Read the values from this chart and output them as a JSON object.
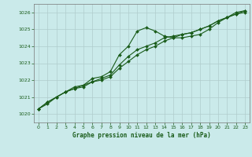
{
  "title": "Graphe pression niveau de la mer (hPa)",
  "bg_color": "#caeaea",
  "grid_color": "#b0cccc",
  "line_color": "#1a5c1a",
  "marker_color": "#1a5c1a",
  "xlim": [
    -0.5,
    23.5
  ],
  "ylim": [
    1019.5,
    1026.5
  ],
  "yticks": [
    1020,
    1021,
    1022,
    1023,
    1024,
    1025,
    1026
  ],
  "xticks": [
    0,
    1,
    2,
    3,
    4,
    5,
    6,
    7,
    8,
    9,
    10,
    11,
    12,
    13,
    14,
    15,
    16,
    17,
    18,
    19,
    20,
    21,
    22,
    23
  ],
  "series1": [
    1020.3,
    1020.7,
    1021.0,
    1021.3,
    1021.6,
    1021.7,
    1022.1,
    1022.2,
    1022.5,
    1023.5,
    1024.0,
    1024.9,
    1025.1,
    1024.9,
    1024.6,
    1024.5,
    1024.5,
    1024.6,
    1024.7,
    1025.0,
    1025.4,
    1025.7,
    1026.0,
    1026.1
  ],
  "series2": [
    1020.3,
    1020.7,
    1021.0,
    1021.3,
    1021.5,
    1021.7,
    1021.9,
    1022.1,
    1022.3,
    1022.9,
    1023.4,
    1023.8,
    1024.0,
    1024.2,
    1024.5,
    1024.6,
    1024.7,
    1024.8,
    1025.0,
    1025.2,
    1025.5,
    1025.7,
    1025.9,
    1026.1
  ],
  "series3": [
    1020.3,
    1020.6,
    1021.0,
    1021.3,
    1021.5,
    1021.6,
    1021.9,
    1022.0,
    1022.2,
    1022.7,
    1023.1,
    1023.5,
    1023.8,
    1024.0,
    1024.3,
    1024.5,
    1024.7,
    1024.8,
    1025.0,
    1025.2,
    1025.5,
    1025.7,
    1025.9,
    1026.0
  ]
}
